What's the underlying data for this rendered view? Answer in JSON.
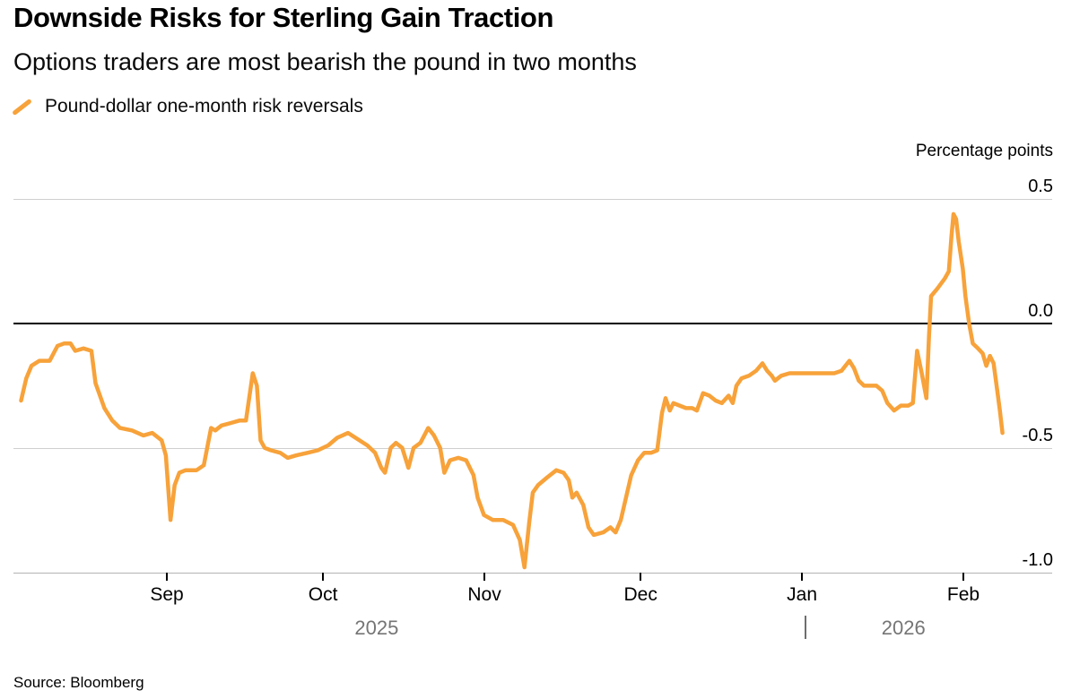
{
  "header": {
    "title": "Downside Risks for Sterling Gain Traction",
    "subtitle": "Options traders are most bearish the pound in two months"
  },
  "legend": {
    "label": "Pound-dollar one-month risk reversals",
    "color": "#F7A23A"
  },
  "footer": {
    "source": "Source: Bloomberg"
  },
  "chart_data": {
    "type": "line",
    "title": "Downside Risks for Sterling Gain Traction",
    "subtitle": "Options traders are most bearish the pound in two months",
    "ylabel": "Percentage points",
    "ylim": [
      -1.1,
      0.6
    ],
    "grid": "horizontal",
    "legend_position": "top-left",
    "y_ticks": [
      {
        "value": 0.5,
        "label": "0.5"
      },
      {
        "value": 0.0,
        "label": "0.0"
      },
      {
        "value": -0.5,
        "label": "-0.5"
      },
      {
        "value": -1.0,
        "label": "-1.0"
      }
    ],
    "x_encoding": "day index along axis; month tick positions in x_ticks",
    "x_domain": [
      -1.5,
      198
    ],
    "x_ticks": [
      {
        "label": "Sep",
        "day": 28
      },
      {
        "label": "Oct",
        "day": 58
      },
      {
        "label": "Nov",
        "day": 89
      },
      {
        "label": "Dec",
        "day": 119
      },
      {
        "label": "Jan",
        "day": 150
      },
      {
        "label": "Feb",
        "day": 181
      }
    ],
    "year_labels": [
      {
        "label": "2025",
        "day": 68.3
      },
      {
        "label": "2026",
        "day": 169.5
      }
    ],
    "year_divider_day": 150.7,
    "series": [
      {
        "name": "Pound-dollar one-month risk reversals",
        "color": "#F7A23A",
        "points": [
          [
            0,
            -0.31
          ],
          [
            1,
            -0.22
          ],
          [
            2,
            -0.17
          ],
          [
            3.5,
            -0.15
          ],
          [
            5.5,
            -0.15
          ],
          [
            7,
            -0.09
          ],
          [
            8.3,
            -0.08
          ],
          [
            9.5,
            -0.08
          ],
          [
            10.4,
            -0.11
          ],
          [
            12,
            -0.1
          ],
          [
            13.5,
            -0.11
          ],
          [
            14.3,
            -0.24
          ],
          [
            16,
            -0.34
          ],
          [
            17.5,
            -0.39
          ],
          [
            19,
            -0.42
          ],
          [
            21.3,
            -0.43
          ],
          [
            23.5,
            -0.45
          ],
          [
            25.2,
            -0.44
          ],
          [
            27,
            -0.47
          ],
          [
            27.8,
            -0.53
          ],
          [
            28.7,
            -0.79
          ],
          [
            29.5,
            -0.65
          ],
          [
            30.4,
            -0.6
          ],
          [
            31.6,
            -0.59
          ],
          [
            33.7,
            -0.59
          ],
          [
            35.1,
            -0.57
          ],
          [
            36.5,
            -0.42
          ],
          [
            37.3,
            -0.43
          ],
          [
            38.5,
            -0.41
          ],
          [
            40.3,
            -0.4
          ],
          [
            42,
            -0.39
          ],
          [
            43.2,
            -0.39
          ],
          [
            44.5,
            -0.2
          ],
          [
            45.3,
            -0.25
          ],
          [
            46,
            -0.47
          ],
          [
            46.8,
            -0.5
          ],
          [
            48,
            -0.51
          ],
          [
            49.8,
            -0.52
          ],
          [
            51.2,
            -0.54
          ],
          [
            52.9,
            -0.53
          ],
          [
            55,
            -0.52
          ],
          [
            57,
            -0.51
          ],
          [
            59,
            -0.49
          ],
          [
            60.7,
            -0.46
          ],
          [
            62.8,
            -0.44
          ],
          [
            65,
            -0.47
          ],
          [
            66.5,
            -0.49
          ],
          [
            68,
            -0.52
          ],
          [
            69.2,
            -0.58
          ],
          [
            69.9,
            -0.6
          ],
          [
            71,
            -0.5
          ],
          [
            72,
            -0.48
          ],
          [
            73.2,
            -0.5
          ],
          [
            74.4,
            -0.58
          ],
          [
            75.4,
            -0.5
          ],
          [
            76.7,
            -0.48
          ],
          [
            78.2,
            -0.42
          ],
          [
            79.3,
            -0.45
          ],
          [
            80.5,
            -0.5
          ],
          [
            81.3,
            -0.6
          ],
          [
            82.4,
            -0.55
          ],
          [
            84,
            -0.54
          ],
          [
            85.5,
            -0.55
          ],
          [
            86.9,
            -0.61
          ],
          [
            87.7,
            -0.7
          ],
          [
            88.9,
            -0.77
          ],
          [
            90.6,
            -0.79
          ],
          [
            92.6,
            -0.79
          ],
          [
            94.5,
            -0.81
          ],
          [
            95.8,
            -0.87
          ],
          [
            96.7,
            -0.98
          ],
          [
            97.6,
            -0.8
          ],
          [
            98.3,
            -0.68
          ],
          [
            99.3,
            -0.65
          ],
          [
            101,
            -0.62
          ],
          [
            102.8,
            -0.59
          ],
          [
            104.2,
            -0.6
          ],
          [
            105.2,
            -0.63
          ],
          [
            105.9,
            -0.7
          ],
          [
            106.7,
            -0.68
          ],
          [
            108,
            -0.73
          ],
          [
            109,
            -0.82
          ],
          [
            110,
            -0.85
          ],
          [
            111.8,
            -0.84
          ],
          [
            113.2,
            -0.82
          ],
          [
            114.2,
            -0.84
          ],
          [
            115.2,
            -0.79
          ],
          [
            116.2,
            -0.7
          ],
          [
            117.2,
            -0.61
          ],
          [
            118.5,
            -0.55
          ],
          [
            119.7,
            -0.52
          ],
          [
            121,
            -0.52
          ],
          [
            122.2,
            -0.51
          ],
          [
            123.1,
            -0.36
          ],
          [
            123.8,
            -0.3
          ],
          [
            124.6,
            -0.35
          ],
          [
            125.3,
            -0.32
          ],
          [
            126.5,
            -0.33
          ],
          [
            127.7,
            -0.34
          ],
          [
            128.9,
            -0.34
          ],
          [
            129.8,
            -0.35
          ],
          [
            131,
            -0.28
          ],
          [
            132.2,
            -0.29
          ],
          [
            133.4,
            -0.31
          ],
          [
            134.6,
            -0.32
          ],
          [
            135.9,
            -0.29
          ],
          [
            136.7,
            -0.32
          ],
          [
            137.4,
            -0.25
          ],
          [
            138.4,
            -0.22
          ],
          [
            139.8,
            -0.21
          ],
          [
            141.2,
            -0.19
          ],
          [
            142.4,
            -0.16
          ],
          [
            143.3,
            -0.19
          ],
          [
            144.2,
            -0.21
          ],
          [
            144.8,
            -0.23
          ],
          [
            146,
            -0.21
          ],
          [
            147.6,
            -0.2
          ],
          [
            149.3,
            -0.2
          ],
          [
            151.1,
            -0.2
          ],
          [
            152.8,
            -0.2
          ],
          [
            154.7,
            -0.2
          ],
          [
            156.2,
            -0.2
          ],
          [
            157.6,
            -0.19
          ],
          [
            159.1,
            -0.15
          ],
          [
            160,
            -0.18
          ],
          [
            160.9,
            -0.23
          ],
          [
            161.9,
            -0.25
          ],
          [
            163.1,
            -0.25
          ],
          [
            164.3,
            -0.25
          ],
          [
            165.4,
            -0.27
          ],
          [
            166.4,
            -0.32
          ],
          [
            167.7,
            -0.35
          ],
          [
            169,
            -0.33
          ],
          [
            170.4,
            -0.33
          ],
          [
            171.3,
            -0.32
          ],
          [
            172.1,
            -0.11
          ],
          [
            173,
            -0.2
          ],
          [
            173.9,
            -0.3
          ],
          [
            174.4,
            -0.05
          ],
          [
            174.8,
            0.11
          ],
          [
            176,
            0.14
          ],
          [
            177.4,
            0.18
          ],
          [
            178.2,
            0.21
          ],
          [
            178.7,
            0.35
          ],
          [
            179.1,
            0.44
          ],
          [
            179.6,
            0.42
          ],
          [
            180.1,
            0.33
          ],
          [
            180.9,
            0.22
          ],
          [
            181.4,
            0.11
          ],
          [
            182.1,
            0
          ],
          [
            182.8,
            -0.08
          ],
          [
            183.8,
            -0.1
          ],
          [
            184.7,
            -0.12
          ],
          [
            185.4,
            -0.17
          ],
          [
            186.1,
            -0.13
          ],
          [
            186.8,
            -0.16
          ],
          [
            187.5,
            -0.27
          ],
          [
            188,
            -0.35
          ],
          [
            188.5,
            -0.44
          ]
        ]
      }
    ]
  }
}
